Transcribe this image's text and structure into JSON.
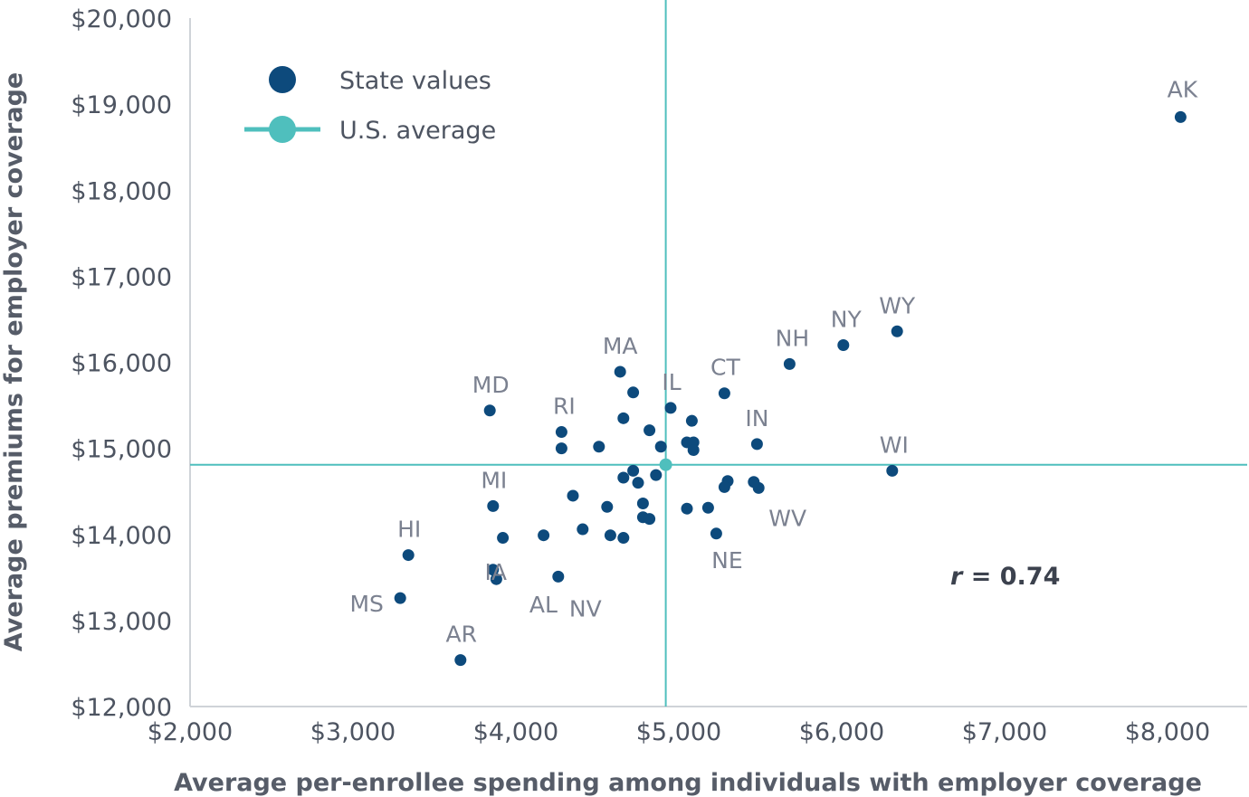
{
  "chart_data": {
    "type": "scatter",
    "xlabel": "Average per-enrollee spending among individuals with employer coverage",
    "ylabel": "Average premiums for employer coverage",
    "xlim": [
      2000,
      8500
    ],
    "ylim": [
      12000,
      20000
    ],
    "x_ticks": [
      2000,
      3000,
      4000,
      5000,
      6000,
      7000,
      8000
    ],
    "y_ticks": [
      12000,
      13000,
      14000,
      15000,
      16000,
      17000,
      18000,
      19000,
      20000
    ],
    "x_tick_labels": [
      "$2,000",
      "$3,000",
      "$4,000",
      "$5,000",
      "$6,000",
      "$7,000",
      "$8,000"
    ],
    "y_tick_labels": [
      "$12,000",
      "$13,000",
      "$14,000",
      "$15,000",
      "$16,000",
      "$17,000",
      "$18,000",
      "$19,000",
      "$20,000"
    ],
    "grid": false,
    "legend": {
      "placement": "top-left",
      "entries": [
        {
          "label": "State values",
          "marker": "dot",
          "color": "#0d4a7c"
        },
        {
          "label": "U.S. average",
          "marker": "line-dot",
          "color": "#4fbfbd"
        }
      ]
    },
    "average": {
      "x": 4920,
      "y": 14810
    },
    "annotation": {
      "r_symbol": "r",
      "equals": " = ",
      "value": "0.74"
    },
    "colors": {
      "points": "#0d4a7c",
      "average": "#4fbfbd",
      "axis": "#cfd3d8"
    },
    "series": [
      {
        "name": "State values",
        "points": [
          {
            "x": 8080,
            "y": 18850,
            "label": "AK"
          },
          {
            "x": 6340,
            "y": 16360,
            "label": "WY"
          },
          {
            "x": 6010,
            "y": 16200,
            "label": "NY"
          },
          {
            "x": 5680,
            "y": 15980,
            "label": "NH"
          },
          {
            "x": 5280,
            "y": 15640,
            "label": "CT"
          },
          {
            "x": 5480,
            "y": 15050,
            "label": "IN"
          },
          {
            "x": 6310,
            "y": 14740,
            "label": "WI"
          },
          {
            "x": 5490,
            "y": 14540,
            "label": "WV"
          },
          {
            "x": 5230,
            "y": 14010,
            "label": "NE"
          },
          {
            "x": 4950,
            "y": 15470,
            "label": "IL"
          },
          {
            "x": 4640,
            "y": 15890,
            "label": "MA"
          },
          {
            "x": 3840,
            "y": 15440,
            "label": "MD"
          },
          {
            "x": 4280,
            "y": 15190,
            "label": "RI"
          },
          {
            "x": 3860,
            "y": 14330,
            "label": "MI"
          },
          {
            "x": 3340,
            "y": 13760,
            "label": "HI"
          },
          {
            "x": 3860,
            "y": 13590,
            "label": "IA"
          },
          {
            "x": 3880,
            "y": 13480,
            "label": "AL"
          },
          {
            "x": 4260,
            "y": 13510,
            "label": "NV"
          },
          {
            "x": 3290,
            "y": 13260,
            "label": "MS"
          },
          {
            "x": 3660,
            "y": 12540,
            "label": "AR"
          },
          {
            "x": 4720,
            "y": 15650,
            "label": ""
          },
          {
            "x": 4660,
            "y": 15350,
            "label": ""
          },
          {
            "x": 4820,
            "y": 15210,
            "label": ""
          },
          {
            "x": 5080,
            "y": 15320,
            "label": ""
          },
          {
            "x": 4280,
            "y": 15000,
            "label": ""
          },
          {
            "x": 4510,
            "y": 15020,
            "label": ""
          },
          {
            "x": 4890,
            "y": 15020,
            "label": ""
          },
          {
            "x": 5050,
            "y": 15070,
            "label": ""
          },
          {
            "x": 5090,
            "y": 15070,
            "label": ""
          },
          {
            "x": 5090,
            "y": 14980,
            "label": ""
          },
          {
            "x": 4720,
            "y": 14740,
            "label": ""
          },
          {
            "x": 4660,
            "y": 14660,
            "label": ""
          },
          {
            "x": 4860,
            "y": 14690,
            "label": ""
          },
          {
            "x": 4750,
            "y": 14600,
            "label": ""
          },
          {
            "x": 5300,
            "y": 14620,
            "label": ""
          },
          {
            "x": 5280,
            "y": 14550,
            "label": ""
          },
          {
            "x": 5460,
            "y": 14610,
            "label": ""
          },
          {
            "x": 4350,
            "y": 14450,
            "label": ""
          },
          {
            "x": 4560,
            "y": 14320,
            "label": ""
          },
          {
            "x": 4780,
            "y": 14360,
            "label": ""
          },
          {
            "x": 5050,
            "y": 14300,
            "label": ""
          },
          {
            "x": 5180,
            "y": 14310,
            "label": ""
          },
          {
            "x": 4780,
            "y": 14200,
            "label": ""
          },
          {
            "x": 4820,
            "y": 14180,
            "label": ""
          },
          {
            "x": 4410,
            "y": 14060,
            "label": ""
          },
          {
            "x": 4580,
            "y": 13990,
            "label": ""
          },
          {
            "x": 4660,
            "y": 13960,
            "label": ""
          },
          {
            "x": 4170,
            "y": 13990,
            "label": ""
          },
          {
            "x": 3920,
            "y": 13960,
            "label": ""
          }
        ]
      }
    ]
  }
}
